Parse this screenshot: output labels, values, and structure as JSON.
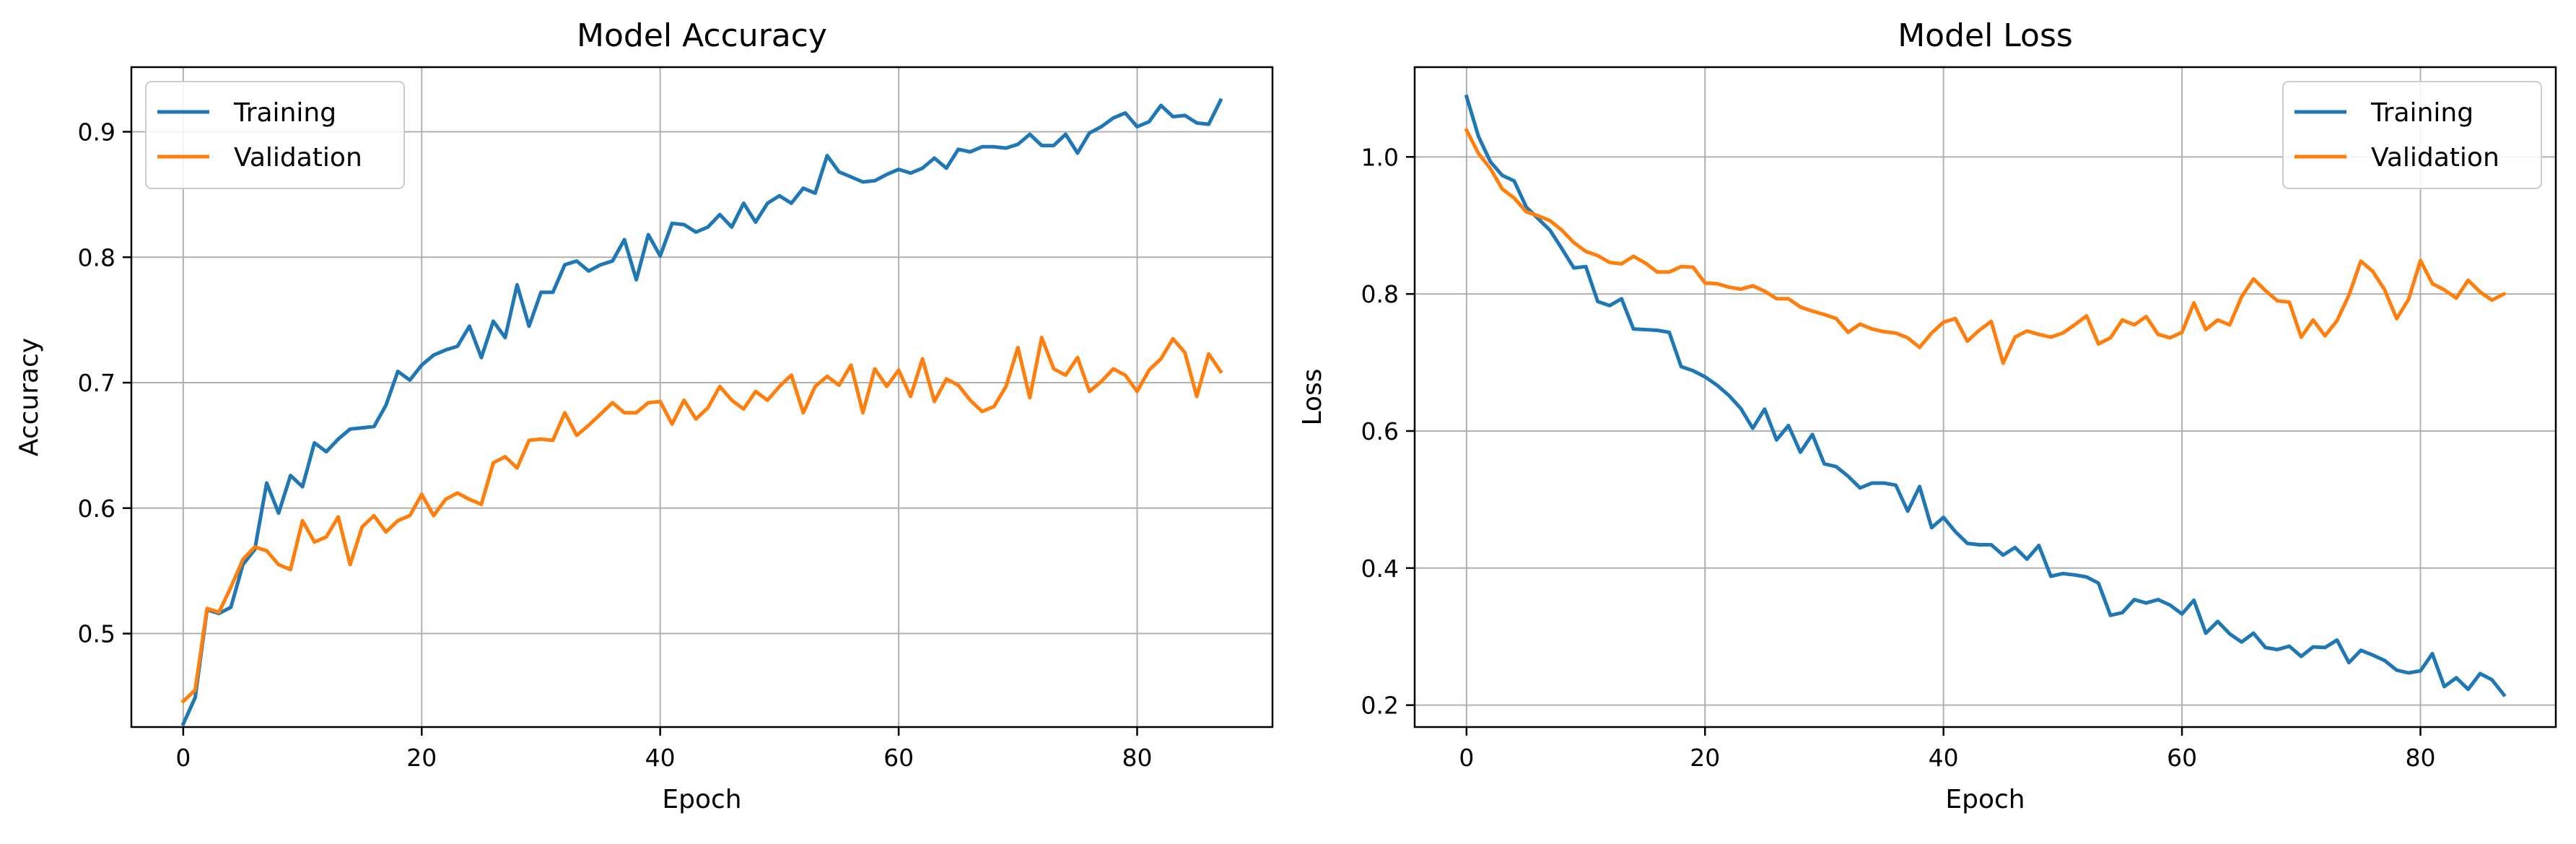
{
  "chart_data": [
    {
      "type": "line",
      "title": "Model Accuracy",
      "xlabel": "Epoch",
      "ylabel": "Accuracy",
      "xlim": [
        -4.35,
        91.35
      ],
      "ylim": [
        0.4255,
        0.9515
      ],
      "xticks": [
        0,
        20,
        40,
        60,
        80
      ],
      "yticks": [
        0.5,
        0.6,
        0.7,
        0.8,
        0.9
      ],
      "ytick_labels": [
        "0.5",
        "0.6",
        "0.7",
        "0.8",
        "0.9"
      ],
      "xtick_labels": [
        "0",
        "20",
        "40",
        "60",
        "80"
      ],
      "grid": true,
      "legend_position": "top-left",
      "series": [
        {
          "name": "Training",
          "color": "#1f77b4",
          "values": [
            0.428,
            0.449,
            0.519,
            0.516,
            0.521,
            0.555,
            0.567,
            0.62,
            0.596,
            0.626,
            0.617,
            0.652,
            0.645,
            0.655,
            0.663,
            0.664,
            0.665,
            0.682,
            0.709,
            0.702,
            0.714,
            0.722,
            0.726,
            0.729,
            0.745,
            0.72,
            0.749,
            0.736,
            0.778,
            0.745,
            0.772,
            0.772,
            0.794,
            0.797,
            0.789,
            0.794,
            0.797,
            0.814,
            0.782,
            0.818,
            0.801,
            0.827,
            0.826,
            0.82,
            0.824,
            0.834,
            0.824,
            0.843,
            0.828,
            0.843,
            0.849,
            0.843,
            0.855,
            0.851,
            0.881,
            0.868,
            0.864,
            0.86,
            0.861,
            0.866,
            0.87,
            0.867,
            0.871,
            0.879,
            0.871,
            0.886,
            0.884,
            0.888,
            0.888,
            0.887,
            0.89,
            0.898,
            0.889,
            0.889,
            0.898,
            0.883,
            0.899,
            0.904,
            0.911,
            0.915,
            0.904,
            0.908,
            0.921,
            0.912,
            0.913,
            0.907,
            0.906,
            0.925
          ]
        },
        {
          "name": "Validation",
          "color": "#ff7f0e",
          "values": [
            0.446,
            0.455,
            0.52,
            0.517,
            0.537,
            0.559,
            0.569,
            0.566,
            0.555,
            0.551,
            0.59,
            0.573,
            0.577,
            0.593,
            0.555,
            0.585,
            0.594,
            0.581,
            0.59,
            0.594,
            0.611,
            0.594,
            0.607,
            0.612,
            0.607,
            0.603,
            0.636,
            0.641,
            0.632,
            0.654,
            0.655,
            0.654,
            0.676,
            0.658,
            0.666,
            0.675,
            0.684,
            0.676,
            0.676,
            0.684,
            0.685,
            0.667,
            0.686,
            0.671,
            0.68,
            0.697,
            0.686,
            0.679,
            0.693,
            0.686,
            0.697,
            0.706,
            0.676,
            0.697,
            0.705,
            0.698,
            0.714,
            0.676,
            0.711,
            0.697,
            0.71,
            0.689,
            0.719,
            0.685,
            0.703,
            0.698,
            0.686,
            0.677,
            0.681,
            0.697,
            0.728,
            0.688,
            0.736,
            0.711,
            0.706,
            0.72,
            0.693,
            0.701,
            0.711,
            0.706,
            0.693,
            0.71,
            0.719,
            0.735,
            0.724,
            0.689,
            0.723,
            0.709
          ]
        }
      ]
    },
    {
      "type": "line",
      "title": "Model Loss",
      "xlabel": "Epoch",
      "ylabel": "Loss",
      "xlim": [
        -4.35,
        91.35
      ],
      "ylim": [
        0.168,
        1.131
      ],
      "xticks": [
        0,
        20,
        40,
        60,
        80
      ],
      "yticks": [
        0.2,
        0.4,
        0.6,
        0.8,
        1.0
      ],
      "ytick_labels": [
        "0.2",
        "0.4",
        "0.6",
        "0.8",
        "1.0"
      ],
      "xtick_labels": [
        "0",
        "20",
        "40",
        "60",
        "80"
      ],
      "grid": true,
      "legend_position": "top-right",
      "series": [
        {
          "name": "Training",
          "color": "#1f77b4",
          "values": [
            1.088,
            1.03,
            0.993,
            0.973,
            0.965,
            0.927,
            0.91,
            0.893,
            0.866,
            0.838,
            0.84,
            0.789,
            0.783,
            0.793,
            0.749,
            0.748,
            0.747,
            0.744,
            0.694,
            0.688,
            0.679,
            0.667,
            0.652,
            0.633,
            0.604,
            0.632,
            0.587,
            0.608,
            0.569,
            0.595,
            0.552,
            0.548,
            0.534,
            0.517,
            0.524,
            0.524,
            0.521,
            0.483,
            0.519,
            0.459,
            0.474,
            0.453,
            0.436,
            0.434,
            0.434,
            0.419,
            0.43,
            0.413,
            0.433,
            0.388,
            0.392,
            0.39,
            0.387,
            0.378,
            0.331,
            0.335,
            0.354,
            0.349,
            0.354,
            0.346,
            0.333,
            0.353,
            0.305,
            0.322,
            0.304,
            0.292,
            0.305,
            0.284,
            0.281,
            0.286,
            0.271,
            0.285,
            0.284,
            0.295,
            0.262,
            0.28,
            0.273,
            0.265,
            0.251,
            0.247,
            0.25,
            0.275,
            0.227,
            0.24,
            0.223,
            0.246,
            0.237,
            0.215
          ]
        },
        {
          "name": "Validation",
          "color": "#ff7f0e",
          "values": [
            1.039,
            1.005,
            0.983,
            0.953,
            0.94,
            0.92,
            0.914,
            0.907,
            0.893,
            0.875,
            0.862,
            0.856,
            0.846,
            0.844,
            0.855,
            0.845,
            0.832,
            0.832,
            0.84,
            0.839,
            0.816,
            0.815,
            0.81,
            0.807,
            0.812,
            0.804,
            0.793,
            0.793,
            0.781,
            0.775,
            0.77,
            0.764,
            0.744,
            0.756,
            0.749,
            0.745,
            0.743,
            0.736,
            0.722,
            0.743,
            0.759,
            0.764,
            0.731,
            0.747,
            0.76,
            0.699,
            0.737,
            0.746,
            0.741,
            0.737,
            0.743,
            0.755,
            0.768,
            0.727,
            0.736,
            0.762,
            0.755,
            0.767,
            0.741,
            0.736,
            0.744,
            0.787,
            0.748,
            0.762,
            0.755,
            0.796,
            0.822,
            0.805,
            0.79,
            0.788,
            0.737,
            0.762,
            0.739,
            0.761,
            0.798,
            0.848,
            0.833,
            0.806,
            0.764,
            0.792,
            0.849,
            0.815,
            0.806,
            0.794,
            0.82,
            0.803,
            0.791,
            0.8
          ]
        }
      ]
    }
  ]
}
